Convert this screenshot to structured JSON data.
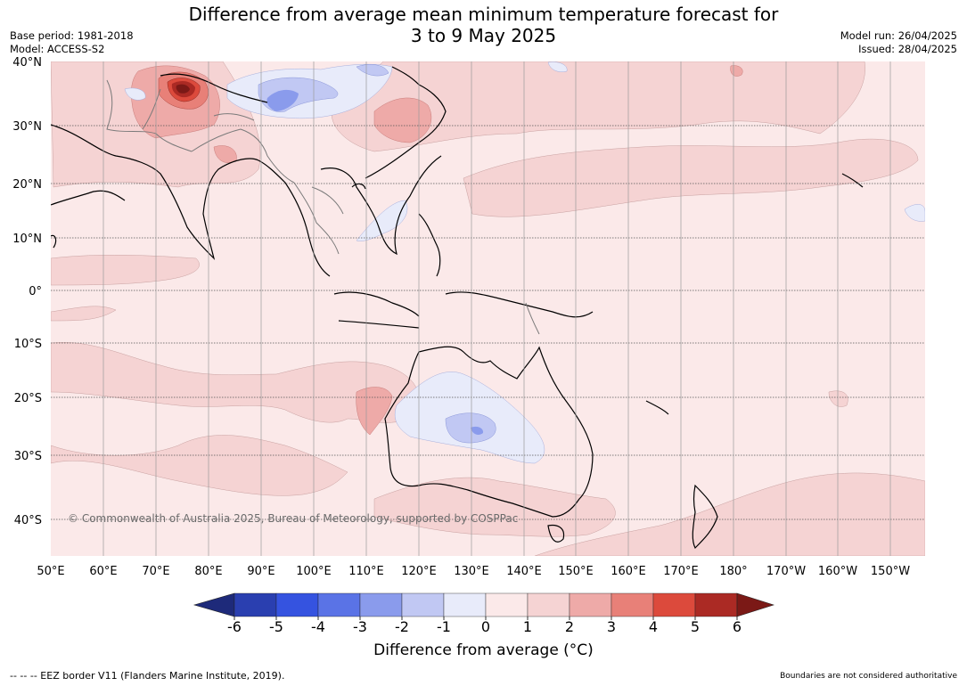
{
  "header": {
    "title_line1": "Difference from average mean minimum temperature forecast for",
    "title_line2": "3 to 9 May 2025",
    "base_period": "Base period: 1981-2018",
    "model": "Model: ACCESS-S2",
    "model_run": "Model run: 26/04/2025",
    "issued": "Issued: 28/04/2025"
  },
  "map": {
    "copyright": "© Commonwealth of Australia 2025, Bureau of Meteorology, supported by COSPPac",
    "lat_labels": [
      "40°N",
      "30°N",
      "20°N",
      "10°N",
      "0°",
      "10°S",
      "20°S",
      "30°S",
      "40°S"
    ],
    "lon_labels": [
      "50°E",
      "60°E",
      "70°E",
      "80°E",
      "90°E",
      "100°E",
      "110°E",
      "120°E",
      "130°E",
      "140°E",
      "150°E",
      "160°E",
      "170°E",
      "180°",
      "170°W",
      "160°W",
      "150°W"
    ]
  },
  "colorbar": {
    "ticks": [
      "-6",
      "-5",
      "-4",
      "-3",
      "-2",
      "-1",
      "0",
      "1",
      "2",
      "3",
      "4",
      "5",
      "6"
    ],
    "colors": [
      "#1e2a7a",
      "#2a3fb0",
      "#3553e0",
      "#5a73e6",
      "#8a9bec",
      "#c1c8f3",
      "#e8ebfa",
      "#fbe9e9",
      "#f5d3d3",
      "#eeaaa8",
      "#e88078",
      "#dc4a3c",
      "#ab2a24",
      "#7b1916"
    ],
    "title": "Difference from average (°C)"
  },
  "footer": {
    "eez_legend": "--  --  -- EEZ border V11 (Flanders Marine Institute, 2019).",
    "disclaimer": "Boundaries are not considered authoritative"
  }
}
